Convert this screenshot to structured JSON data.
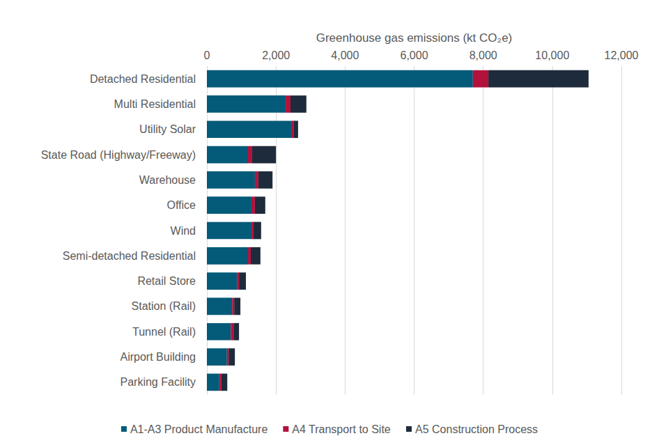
{
  "chart_data": {
    "type": "bar",
    "orientation": "horizontal",
    "stacked": true,
    "grid": true,
    "legend": "bottom",
    "x_label": "Greenhouse gas emissions (kt CO₂e)",
    "categories": [
      "Detached Residential",
      "Multi Residential",
      "Utility Solar",
      "State Road (Highway/Freeway)",
      "Warehouse",
      "Office",
      "Wind",
      "Semi-detached Residential",
      "Retail Store",
      "Station (Rail)",
      "Tunnel (Rail)",
      "Airport Building",
      "Parking Facility"
    ],
    "series": [
      {
        "name": "A1-A3 Product Manufacture",
        "color": "#035a79",
        "values": [
          7700,
          2280,
          2440,
          1190,
          1390,
          1290,
          1290,
          1190,
          870,
          730,
          690,
          580,
          360
        ]
      },
      {
        "name": "A4 Transport to Site",
        "color": "#b3123d",
        "values": [
          450,
          140,
          80,
          120,
          100,
          100,
          60,
          80,
          60,
          60,
          80,
          50,
          60
        ]
      },
      {
        "name": "A5 Construction Process",
        "color": "#1e2b3c",
        "values": [
          2900,
          460,
          120,
          690,
          410,
          300,
          220,
          280,
          200,
          180,
          160,
          180,
          170
        ]
      }
    ],
    "xlim": [
      0,
      12000
    ],
    "xticks": [
      0,
      {
        "value": 2000,
        "label": "2,000"
      },
      {
        "value": 4000,
        "label": "4,000"
      },
      {
        "value": 6000,
        "label": "6,000"
      },
      {
        "value": 8000,
        "label": "8,000"
      },
      {
        "value": 10000,
        "label": "10,000"
      },
      {
        "value": 12000,
        "label": "12,000"
      }
    ]
  }
}
